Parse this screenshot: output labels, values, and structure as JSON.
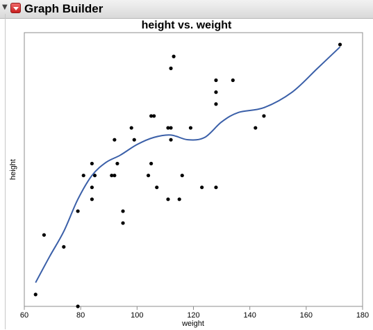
{
  "window": {
    "title": "Graph Builder"
  },
  "chart_data": {
    "type": "scatter",
    "title": "height vs. weight",
    "xlabel": "weight",
    "ylabel": "height",
    "xlim": [
      60,
      180
    ],
    "ylim": [
      50,
      73
    ],
    "xticks": [
      60,
      80,
      100,
      120,
      140,
      160,
      180
    ],
    "grid": false,
    "series": [
      {
        "x": [
          64,
          67,
          74,
          79,
          79,
          81,
          84,
          84,
          85,
          84,
          91,
          92,
          92,
          93,
          95,
          95,
          98,
          99,
          104,
          105,
          105,
          106,
          107,
          111,
          111,
          112,
          112,
          112,
          113,
          115,
          116,
          119,
          123,
          128,
          128,
          128,
          128,
          134,
          142,
          145,
          172
        ],
        "y": [
          51,
          56,
          55,
          50,
          58,
          61,
          60,
          62,
          61,
          59,
          61,
          64,
          61,
          62,
          58,
          57,
          65,
          64,
          61,
          62,
          66,
          66,
          60,
          59,
          65,
          65,
          64,
          70,
          71,
          59,
          61,
          65,
          60,
          68,
          60,
          67,
          69,
          69,
          65,
          66,
          72
        ]
      }
    ],
    "smoother": {
      "x": [
        64,
        69,
        74,
        79,
        84,
        89,
        94,
        100,
        106,
        112,
        118,
        124,
        130,
        136,
        145,
        155,
        164,
        172
      ],
      "y": [
        52.0,
        54.2,
        56.3,
        59.0,
        61.0,
        62.1,
        62.7,
        63.6,
        64.2,
        64.4,
        64.0,
        64.2,
        65.5,
        66.3,
        66.7,
        68.0,
        70.0,
        71.8
      ]
    },
    "colors": {
      "points": "#000000",
      "smoother": "#3a5fa8",
      "frame": "#8c8c8c"
    }
  }
}
